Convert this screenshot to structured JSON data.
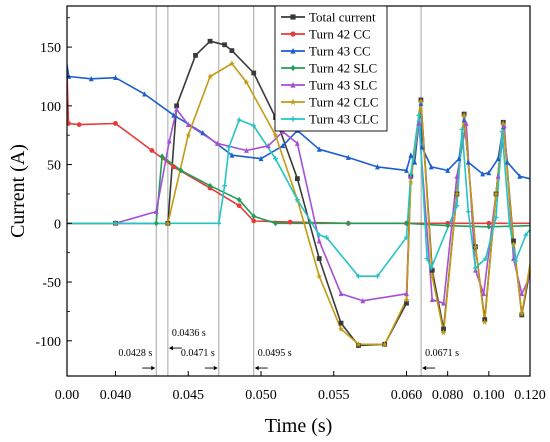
{
  "chart_data": {
    "type": "line",
    "xlabel": "Time (s)",
    "ylabel": "Current (A)",
    "ylim": [
      -130,
      185
    ],
    "x_ticks": [
      "0.00",
      "0.040",
      "0.045",
      "0.050",
      "0.055",
      "0.060",
      "0.080",
      "0.100",
      "0.120"
    ],
    "y_ticks": [
      -100,
      -50,
      0,
      50,
      100,
      150
    ],
    "y_tick_labels": [
      "-100",
      "-50",
      "0",
      "50",
      "100",
      "150"
    ],
    "x_axis_note": "non-linear time axis: segments 0-0.040, 0.040-0.060 (5 ms per tick), 0.060-0.120 (20 ms per tick)",
    "legend_position": "top-right",
    "series": [
      {
        "name": "Total current",
        "color": "#3a3a3a",
        "marker": "square",
        "points": [
          [
            0,
            0
          ],
          [
            0.04,
            0
          ],
          [
            0.0436,
            0
          ],
          [
            0.0442,
            100
          ],
          [
            0.0455,
            143
          ],
          [
            0.0465,
            155
          ],
          [
            0.0475,
            152
          ],
          [
            0.048,
            147
          ],
          [
            0.0495,
            128
          ],
          [
            0.051,
            90
          ],
          [
            0.0525,
            38
          ],
          [
            0.054,
            -30
          ],
          [
            0.0555,
            -85
          ],
          [
            0.0567,
            -104
          ],
          [
            0.0585,
            -103
          ],
          [
            0.06,
            -68
          ],
          [
            0.0621,
            40
          ],
          [
            0.067,
            105
          ],
          [
            0.0725,
            -40
          ],
          [
            0.078,
            -90
          ],
          [
            0.0845,
            25
          ],
          [
            0.088,
            93
          ],
          [
            0.0935,
            -20
          ],
          [
            0.098,
            -82
          ],
          [
            0.1035,
            25
          ],
          [
            0.107,
            86
          ],
          [
            0.112,
            -15
          ],
          [
            0.116,
            -78
          ],
          [
            0.12,
            -40
          ]
        ]
      },
      {
        "name": "Turn 42 CC",
        "color": "#e83a3a",
        "marker": "circle",
        "points": [
          [
            0,
            128
          ],
          [
            0.0012,
            85
          ],
          [
            0.01,
            84
          ],
          [
            0.04,
            85
          ],
          [
            0.0425,
            62
          ],
          [
            0.044,
            48
          ],
          [
            0.0465,
            30
          ],
          [
            0.0485,
            15
          ],
          [
            0.0495,
            2
          ],
          [
            0.052,
            1
          ],
          [
            0.056,
            0
          ],
          [
            0.06,
            0
          ],
          [
            0.08,
            0
          ],
          [
            0.1,
            0
          ],
          [
            0.12,
            0
          ]
        ]
      },
      {
        "name": "Turn 43 CC",
        "color": "#1a5fcf",
        "marker": "triangle",
        "points": [
          [
            0,
            135
          ],
          [
            0.0015,
            125
          ],
          [
            0.02,
            123
          ],
          [
            0.04,
            124
          ],
          [
            0.042,
            110
          ],
          [
            0.044,
            92
          ],
          [
            0.046,
            77
          ],
          [
            0.048,
            58
          ],
          [
            0.05,
            55
          ],
          [
            0.0515,
            66
          ],
          [
            0.0525,
            79
          ],
          [
            0.054,
            63
          ],
          [
            0.056,
            56
          ],
          [
            0.058,
            48
          ],
          [
            0.06,
            45
          ],
          [
            0.0621,
            58
          ],
          [
            0.064,
            52
          ],
          [
            0.067,
            102
          ],
          [
            0.0675,
            65
          ],
          [
            0.072,
            48
          ],
          [
            0.08,
            45
          ],
          [
            0.0855,
            55
          ],
          [
            0.088,
            88
          ],
          [
            0.09,
            52
          ],
          [
            0.097,
            42
          ],
          [
            0.1,
            43
          ],
          [
            0.1045,
            55
          ],
          [
            0.107,
            82
          ],
          [
            0.109,
            52
          ],
          [
            0.115,
            40
          ],
          [
            0.12,
            38
          ]
        ]
      },
      {
        "name": "Turn 42 SLC",
        "color": "#1f9e5a",
        "marker": "diamond",
        "points": [
          [
            0,
            0
          ],
          [
            0.04,
            0
          ],
          [
            0.0428,
            0
          ],
          [
            0.0432,
            57
          ],
          [
            0.0445,
            45
          ],
          [
            0.0465,
            32
          ],
          [
            0.0485,
            20
          ],
          [
            0.0495,
            6
          ],
          [
            0.051,
            0
          ],
          [
            0.056,
            0
          ],
          [
            0.06,
            0
          ],
          [
            0.08,
            -2
          ],
          [
            0.1,
            -3
          ],
          [
            0.12,
            -2
          ]
        ]
      },
      {
        "name": "Turn 43 SLC",
        "color": "#a64fd6",
        "marker": "triangle",
        "points": [
          [
            0,
            0
          ],
          [
            0.04,
            0
          ],
          [
            0.0428,
            10
          ],
          [
            0.0437,
            70
          ],
          [
            0.0442,
            97
          ],
          [
            0.045,
            84
          ],
          [
            0.047,
            68
          ],
          [
            0.049,
            62
          ],
          [
            0.0505,
            66
          ],
          [
            0.0515,
            78
          ],
          [
            0.0525,
            68
          ],
          [
            0.054,
            -15
          ],
          [
            0.0555,
            -60
          ],
          [
            0.057,
            -66
          ],
          [
            0.06,
            -60
          ],
          [
            0.0621,
            40
          ],
          [
            0.066,
            85
          ],
          [
            0.0725,
            -65
          ],
          [
            0.078,
            -68
          ],
          [
            0.0845,
            40
          ],
          [
            0.089,
            85
          ],
          [
            0.0935,
            -40
          ],
          [
            0.0975,
            -60
          ],
          [
            0.1045,
            40
          ],
          [
            0.1075,
            83
          ],
          [
            0.112,
            -30
          ],
          [
            0.116,
            -60
          ],
          [
            0.12,
            -45
          ]
        ]
      },
      {
        "name": "Turn 42 CLC",
        "color": "#c49a12",
        "marker": "star",
        "points": [
          [
            0,
            0
          ],
          [
            0.04,
            0
          ],
          [
            0.0436,
            0
          ],
          [
            0.045,
            75
          ],
          [
            0.0465,
            125
          ],
          [
            0.048,
            136
          ],
          [
            0.049,
            120
          ],
          [
            0.051,
            75
          ],
          [
            0.0525,
            20
          ],
          [
            0.054,
            -45
          ],
          [
            0.0555,
            -90
          ],
          [
            0.0567,
            -103
          ],
          [
            0.0585,
            -103
          ],
          [
            0.06,
            -65
          ],
          [
            0.0621,
            35
          ],
          [
            0.067,
            104
          ],
          [
            0.0725,
            -45
          ],
          [
            0.078,
            -93
          ],
          [
            0.0845,
            25
          ],
          [
            0.088,
            92
          ],
          [
            0.0935,
            -20
          ],
          [
            0.098,
            -84
          ],
          [
            0.1035,
            25
          ],
          [
            0.107,
            85
          ],
          [
            0.112,
            -18
          ],
          [
            0.116,
            -77
          ],
          [
            0.12,
            -35
          ]
        ]
      },
      {
        "name": "Turn 43 CLC",
        "color": "#25c4c4",
        "marker": "plus",
        "points": [
          [
            0,
            0
          ],
          [
            0.04,
            0
          ],
          [
            0.0471,
            0
          ],
          [
            0.0475,
            32
          ],
          [
            0.0478,
            65
          ],
          [
            0.0485,
            88
          ],
          [
            0.0495,
            83
          ],
          [
            0.051,
            55
          ],
          [
            0.0525,
            20
          ],
          [
            0.054,
            -10
          ],
          [
            0.0545,
            -12
          ],
          [
            0.0567,
            -45
          ],
          [
            0.058,
            -45
          ],
          [
            0.06,
            -12
          ],
          [
            0.0621,
            42
          ],
          [
            0.066,
            92
          ],
          [
            0.07,
            -30
          ],
          [
            0.072,
            -38
          ],
          [
            0.0845,
            15
          ],
          [
            0.087,
            80
          ],
          [
            0.09,
            10
          ],
          [
            0.0935,
            -38
          ],
          [
            0.0985,
            -30
          ],
          [
            0.1035,
            5
          ],
          [
            0.1065,
            78
          ],
          [
            0.11,
            0
          ],
          [
            0.113,
            -32
          ],
          [
            0.118,
            -10
          ],
          [
            0.12,
            -5
          ]
        ]
      }
    ],
    "vlines": [
      0.0428,
      0.0436,
      0.0471,
      0.0495,
      0.0671
    ],
    "annotations": [
      {
        "text": "0.0428 s",
        "x": 0.0428,
        "y": -113,
        "side": "left"
      },
      {
        "text": "0.0436 s",
        "x": 0.0436,
        "y": -96,
        "side": "right"
      },
      {
        "text": "0.0471 s",
        "x": 0.0471,
        "y": -113,
        "side": "left"
      },
      {
        "text": "0.0495 s",
        "x": 0.0495,
        "y": -113,
        "side": "right"
      },
      {
        "text": "0.0671 s",
        "x": 0.0671,
        "y": -113,
        "side": "right"
      }
    ]
  }
}
